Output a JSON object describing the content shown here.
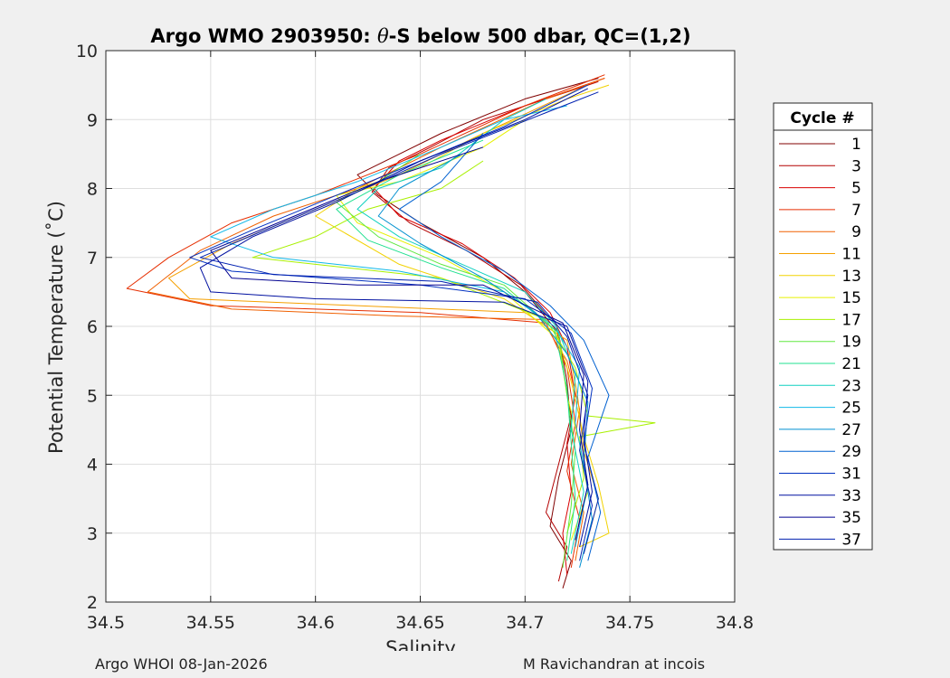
{
  "chart_data": {
    "type": "line",
    "title_parts": {
      "prefix": "Argo WMO 2903950: ",
      "symbol": "θ",
      "suffix": "-S below 500 dbar,  QC=(1,2)"
    },
    "xlabel": "Salinity",
    "ylabel": "Potential Temperature (˚C)",
    "xlim": [
      34.5,
      34.8
    ],
    "ylim": [
      2,
      10
    ],
    "xticks": [
      "34.5",
      "34.55",
      "34.6",
      "34.65",
      "34.7",
      "34.75",
      "34.8"
    ],
    "yticks": [
      "2",
      "3",
      "4",
      "5",
      "6",
      "7",
      "8",
      "9",
      "10"
    ],
    "grid": true,
    "legend": {
      "title": "Cycle #",
      "placement": "right-outside",
      "entries": [
        {
          "label": "1",
          "color": "#800000"
        },
        {
          "label": "3",
          "color": "#b30000"
        },
        {
          "label": "5",
          "color": "#d90000"
        },
        {
          "label": "7",
          "color": "#e62e00"
        },
        {
          "label": "9",
          "color": "#f06000"
        },
        {
          "label": "11",
          "color": "#f5a000"
        },
        {
          "label": "13",
          "color": "#f2d200"
        },
        {
          "label": "15",
          "color": "#e6f000"
        },
        {
          "label": "17",
          "color": "#a8f000"
        },
        {
          "label": "19",
          "color": "#60e840"
        },
        {
          "label": "21",
          "color": "#20e090"
        },
        {
          "label": "23",
          "color": "#10d0c0"
        },
        {
          "label": "25",
          "color": "#10b8e8"
        },
        {
          "label": "27",
          "color": "#0090d0"
        },
        {
          "label": "29",
          "color": "#0060d0"
        },
        {
          "label": "31",
          "color": "#0030c0"
        },
        {
          "label": "33",
          "color": "#0010a0"
        },
        {
          "label": "35",
          "color": "#000090"
        },
        {
          "label": "37",
          "color": "#0020b0"
        }
      ]
    },
    "series": [
      {
        "name": "1",
        "color": "#800000",
        "points": [
          [
            34.718,
            2.2
          ],
          [
            34.722,
            2.6
          ],
          [
            34.712,
            3.1
          ],
          [
            34.716,
            3.8
          ],
          [
            34.722,
            4.5
          ],
          [
            34.72,
            5.2
          ],
          [
            34.716,
            5.9
          ],
          [
            34.7,
            6.5
          ],
          [
            34.68,
            7.0
          ],
          [
            34.65,
            7.5
          ],
          [
            34.63,
            7.9
          ],
          [
            34.62,
            8.2
          ],
          [
            34.64,
            8.5
          ],
          [
            34.66,
            8.8
          ],
          [
            34.7,
            9.3
          ],
          [
            34.735,
            9.6
          ]
        ]
      },
      {
        "name": "3",
        "color": "#b30000",
        "points": [
          [
            34.716,
            2.3
          ],
          [
            34.72,
            2.8
          ],
          [
            34.71,
            3.3
          ],
          [
            34.716,
            4.0
          ],
          [
            34.722,
            4.7
          ],
          [
            34.718,
            5.4
          ],
          [
            34.715,
            6.0
          ],
          [
            34.698,
            6.6
          ],
          [
            34.672,
            7.1
          ],
          [
            34.645,
            7.5
          ],
          [
            34.627,
            7.95
          ],
          [
            34.635,
            8.3
          ],
          [
            34.655,
            8.6
          ],
          [
            34.68,
            9.0
          ],
          [
            34.72,
            9.4
          ],
          [
            34.735,
            9.55
          ]
        ]
      },
      {
        "name": "5",
        "color": "#d90000",
        "points": [
          [
            34.72,
            2.4
          ],
          [
            34.718,
            3.0
          ],
          [
            34.722,
            3.6
          ],
          [
            34.72,
            4.3
          ],
          [
            34.724,
            5.0
          ],
          [
            34.72,
            5.7
          ],
          [
            34.712,
            6.2
          ],
          [
            34.695,
            6.7
          ],
          [
            34.67,
            7.2
          ],
          [
            34.64,
            7.6
          ],
          [
            34.628,
            8.0
          ],
          [
            34.64,
            8.4
          ],
          [
            34.66,
            8.7
          ],
          [
            34.7,
            9.2
          ],
          [
            34.738,
            9.6
          ]
        ]
      },
      {
        "name": "7",
        "color": "#e62e00",
        "points": [
          [
            34.722,
            2.5
          ],
          [
            34.726,
            3.2
          ],
          [
            34.72,
            3.9
          ],
          [
            34.724,
            4.6
          ],
          [
            34.72,
            5.4
          ],
          [
            34.71,
            6.05
          ],
          [
            34.65,
            6.2
          ],
          [
            34.55,
            6.3
          ],
          [
            34.51,
            6.55
          ],
          [
            34.53,
            7.0
          ],
          [
            34.56,
            7.5
          ],
          [
            34.6,
            7.9
          ],
          [
            34.65,
            8.5
          ],
          [
            34.7,
            9.2
          ],
          [
            34.738,
            9.65
          ]
        ]
      },
      {
        "name": "9",
        "color": "#f06000",
        "points": [
          [
            34.724,
            2.6
          ],
          [
            34.728,
            3.3
          ],
          [
            34.722,
            4.0
          ],
          [
            34.726,
            4.8
          ],
          [
            34.72,
            5.5
          ],
          [
            34.708,
            6.1
          ],
          [
            34.64,
            6.15
          ],
          [
            34.56,
            6.25
          ],
          [
            34.52,
            6.5
          ],
          [
            34.545,
            7.1
          ],
          [
            34.58,
            7.6
          ],
          [
            34.62,
            8.0
          ],
          [
            34.66,
            8.6
          ],
          [
            34.71,
            9.3
          ],
          [
            34.738,
            9.6
          ]
        ]
      },
      {
        "name": "11",
        "color": "#f5a000",
        "points": [
          [
            34.728,
            2.7
          ],
          [
            34.735,
            3.5
          ],
          [
            34.728,
            4.2
          ],
          [
            34.725,
            5.0
          ],
          [
            34.72,
            5.8
          ],
          [
            34.7,
            6.2
          ],
          [
            34.62,
            6.3
          ],
          [
            34.54,
            6.4
          ],
          [
            34.53,
            6.7
          ],
          [
            34.56,
            7.2
          ],
          [
            34.6,
            7.7
          ],
          [
            34.64,
            8.2
          ],
          [
            34.68,
            8.8
          ],
          [
            34.73,
            9.5
          ]
        ]
      },
      {
        "name": "13",
        "color": "#f2d200",
        "points": [
          [
            34.726,
            2.8
          ],
          [
            34.74,
            3.0
          ],
          [
            34.735,
            3.7
          ],
          [
            34.728,
            4.4
          ],
          [
            34.722,
            5.2
          ],
          [
            34.715,
            5.9
          ],
          [
            34.69,
            6.4
          ],
          [
            34.64,
            6.9
          ],
          [
            34.6,
            7.6
          ],
          [
            34.62,
            8.0
          ],
          [
            34.65,
            8.3
          ],
          [
            34.68,
            8.8
          ],
          [
            34.72,
            9.3
          ],
          [
            34.74,
            9.5
          ]
        ]
      },
      {
        "name": "15",
        "color": "#e6f000",
        "points": [
          [
            34.722,
            2.9
          ],
          [
            34.73,
            3.6
          ],
          [
            34.726,
            4.3
          ],
          [
            34.72,
            5.0
          ],
          [
            34.716,
            5.8
          ],
          [
            34.69,
            6.5
          ],
          [
            34.66,
            7.0
          ],
          [
            34.62,
            7.5
          ],
          [
            34.61,
            7.9
          ],
          [
            34.64,
            8.1
          ],
          [
            34.68,
            8.6
          ],
          [
            34.7,
            9.0
          ]
        ]
      },
      {
        "name": "17",
        "color": "#a8f000",
        "points": [
          [
            34.72,
            3.0
          ],
          [
            34.728,
            3.8
          ],
          [
            34.726,
            4.4
          ],
          [
            34.762,
            4.6
          ],
          [
            34.73,
            4.7
          ],
          [
            34.724,
            5.4
          ],
          [
            34.71,
            6.1
          ],
          [
            34.66,
            6.7
          ],
          [
            34.6,
            6.9
          ],
          [
            34.57,
            7.0
          ],
          [
            34.6,
            7.3
          ],
          [
            34.625,
            7.7
          ],
          [
            34.66,
            8.0
          ],
          [
            34.68,
            8.4
          ]
        ]
      },
      {
        "name": "19",
        "color": "#60e840",
        "points": [
          [
            34.718,
            2.5
          ],
          [
            34.722,
            3.4
          ],
          [
            34.724,
            4.2
          ],
          [
            34.72,
            5.0
          ],
          [
            34.716,
            5.9
          ],
          [
            34.69,
            6.6
          ],
          [
            34.66,
            6.9
          ],
          [
            34.63,
            7.3
          ],
          [
            34.61,
            7.8
          ],
          [
            34.63,
            8.1
          ],
          [
            34.65,
            8.5
          ]
        ]
      },
      {
        "name": "21",
        "color": "#20e090",
        "points": [
          [
            34.72,
            2.6
          ],
          [
            34.724,
            3.5
          ],
          [
            34.722,
            4.3
          ],
          [
            34.72,
            5.1
          ],
          [
            34.714,
            5.95
          ],
          [
            34.69,
            6.55
          ],
          [
            34.66,
            6.85
          ],
          [
            34.625,
            7.25
          ],
          [
            34.61,
            7.7
          ],
          [
            34.64,
            8.2
          ],
          [
            34.68,
            8.7
          ]
        ]
      },
      {
        "name": "23",
        "color": "#10d0c0",
        "points": [
          [
            34.722,
            2.7
          ],
          [
            34.728,
            3.6
          ],
          [
            34.722,
            4.5
          ],
          [
            34.724,
            5.3
          ],
          [
            34.715,
            6.0
          ],
          [
            34.7,
            6.5
          ],
          [
            34.67,
            6.9
          ],
          [
            34.64,
            7.3
          ],
          [
            34.62,
            7.7
          ],
          [
            34.63,
            8.0
          ],
          [
            34.66,
            8.3
          ],
          [
            34.69,
            9.0
          ],
          [
            34.71,
            9.3
          ]
        ]
      },
      {
        "name": "25",
        "color": "#10b8e8",
        "points": [
          [
            34.724,
            2.8
          ],
          [
            34.73,
            3.7
          ],
          [
            34.724,
            4.6
          ],
          [
            34.726,
            5.4
          ],
          [
            34.714,
            6.0
          ],
          [
            34.69,
            6.5
          ],
          [
            34.64,
            6.8
          ],
          [
            34.58,
            7.0
          ],
          [
            34.55,
            7.3
          ],
          [
            34.58,
            7.7
          ],
          [
            34.62,
            8.1
          ],
          [
            34.66,
            8.6
          ],
          [
            34.69,
            9.0
          ],
          [
            34.72,
            9.2
          ]
        ]
      },
      {
        "name": "27",
        "color": "#0090d0",
        "points": [
          [
            34.726,
            2.5
          ],
          [
            34.732,
            3.2
          ],
          [
            34.728,
            4.0
          ],
          [
            34.73,
            4.9
          ],
          [
            34.72,
            5.6
          ],
          [
            34.705,
            6.2
          ],
          [
            34.68,
            6.7
          ],
          [
            34.65,
            7.2
          ],
          [
            34.63,
            7.6
          ],
          [
            34.64,
            8.0
          ],
          [
            34.67,
            8.5
          ]
        ]
      },
      {
        "name": "29",
        "color": "#0060d0",
        "points": [
          [
            34.73,
            2.6
          ],
          [
            34.736,
            3.3
          ],
          [
            34.73,
            4.1
          ],
          [
            34.74,
            5.0
          ],
          [
            34.728,
            5.8
          ],
          [
            34.712,
            6.3
          ],
          [
            34.69,
            6.8
          ],
          [
            34.66,
            7.3
          ],
          [
            34.64,
            7.7
          ],
          [
            34.66,
            8.1
          ],
          [
            34.68,
            8.8
          ]
        ]
      },
      {
        "name": "31",
        "color": "#0030c0",
        "points": [
          [
            34.728,
            2.7
          ],
          [
            34.735,
            3.5
          ],
          [
            34.728,
            4.3
          ],
          [
            34.732,
            5.1
          ],
          [
            34.722,
            5.9
          ],
          [
            34.7,
            6.4
          ],
          [
            34.65,
            6.6
          ],
          [
            34.56,
            6.8
          ],
          [
            34.54,
            7.0
          ],
          [
            34.57,
            7.4
          ],
          [
            34.61,
            7.9
          ],
          [
            34.65,
            8.4
          ],
          [
            34.69,
            8.9
          ],
          [
            34.73,
            9.5
          ]
        ]
      },
      {
        "name": "33",
        "color": "#0010a0",
        "points": [
          [
            34.726,
            2.8
          ],
          [
            34.732,
            3.6
          ],
          [
            34.728,
            4.4
          ],
          [
            34.73,
            5.2
          ],
          [
            34.72,
            6.0
          ],
          [
            34.69,
            6.35
          ],
          [
            34.6,
            6.4
          ],
          [
            34.55,
            6.5
          ],
          [
            34.545,
            6.85
          ],
          [
            34.57,
            7.3
          ],
          [
            34.61,
            7.8
          ],
          [
            34.65,
            8.4
          ],
          [
            34.7,
            9.0
          ],
          [
            34.73,
            9.45
          ]
        ]
      },
      {
        "name": "35",
        "color": "#000090",
        "points": [
          [
            34.724,
            2.9
          ],
          [
            34.73,
            3.7
          ],
          [
            34.726,
            4.5
          ],
          [
            34.728,
            5.3
          ],
          [
            34.718,
            6.05
          ],
          [
            34.68,
            6.6
          ],
          [
            34.62,
            6.6
          ],
          [
            34.56,
            6.7
          ],
          [
            34.55,
            7.1
          ],
          [
            34.59,
            7.6
          ],
          [
            34.63,
            8.1
          ],
          [
            34.68,
            8.6
          ]
        ]
      },
      {
        "name": "37",
        "color": "#0020b0",
        "points": [
          [
            34.726,
            2.6
          ],
          [
            34.732,
            3.4
          ],
          [
            34.726,
            4.2
          ],
          [
            34.73,
            5.0
          ],
          [
            34.72,
            5.85
          ],
          [
            34.706,
            6.35
          ],
          [
            34.66,
            6.65
          ],
          [
            34.58,
            6.75
          ],
          [
            34.545,
            7.0
          ],
          [
            34.58,
            7.45
          ],
          [
            34.62,
            7.95
          ],
          [
            34.66,
            8.5
          ],
          [
            34.71,
            9.1
          ],
          [
            34.735,
            9.4
          ]
        ]
      }
    ]
  },
  "footer": {
    "left": "Argo WHOI 08-Jan-2026",
    "right": "M Ravichandran at incois"
  }
}
